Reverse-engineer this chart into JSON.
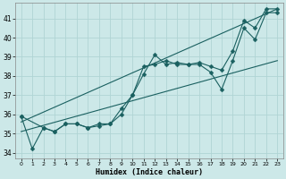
{
  "title": "",
  "xlabel": "Humidex (Indice chaleur)",
  "ylabel": "",
  "xlim": [
    -0.5,
    23.5
  ],
  "ylim": [
    33.7,
    41.8
  ],
  "yticks": [
    34,
    35,
    36,
    37,
    38,
    39,
    40,
    41
  ],
  "xticks": [
    0,
    1,
    2,
    3,
    4,
    5,
    6,
    7,
    8,
    9,
    10,
    11,
    12,
    13,
    14,
    15,
    16,
    17,
    18,
    19,
    20,
    21,
    22,
    23
  ],
  "bg_color": "#cce8e8",
  "grid_color": "#b0d4d4",
  "line_color": "#1a6060",
  "lines": [
    {
      "x": [
        0,
        1,
        2,
        3,
        4,
        5,
        6,
        7,
        8,
        9,
        10,
        11,
        12,
        13,
        14,
        15,
        16,
        17,
        18,
        19,
        20,
        21,
        22,
        23
      ],
      "y": [
        35.9,
        34.2,
        35.3,
        35.1,
        35.5,
        35.5,
        35.3,
        35.4,
        35.5,
        36.0,
        37.0,
        38.5,
        38.6,
        38.8,
        38.6,
        38.6,
        38.6,
        38.2,
        37.3,
        38.8,
        40.5,
        39.9,
        41.3,
        41.3
      ],
      "marker": "D",
      "markersize": 2.5
    },
    {
      "x": [
        0,
        2,
        3,
        4,
        5,
        6,
        7,
        8,
        9,
        10,
        11,
        12,
        13,
        14,
        15,
        16,
        17,
        18,
        19,
        20,
        21,
        22,
        23
      ],
      "y": [
        35.9,
        35.3,
        35.1,
        35.5,
        35.5,
        35.3,
        35.5,
        35.5,
        36.3,
        37.0,
        38.1,
        39.1,
        38.6,
        38.7,
        38.6,
        38.7,
        38.5,
        38.3,
        39.3,
        40.9,
        40.5,
        41.5,
        41.5
      ],
      "marker": "D",
      "markersize": 2.5
    },
    {
      "x": [
        0,
        23
      ],
      "y": [
        35.6,
        41.5
      ],
      "marker": null,
      "markersize": 0
    },
    {
      "x": [
        0,
        23
      ],
      "y": [
        35.1,
        38.8
      ],
      "marker": null,
      "markersize": 0
    }
  ]
}
